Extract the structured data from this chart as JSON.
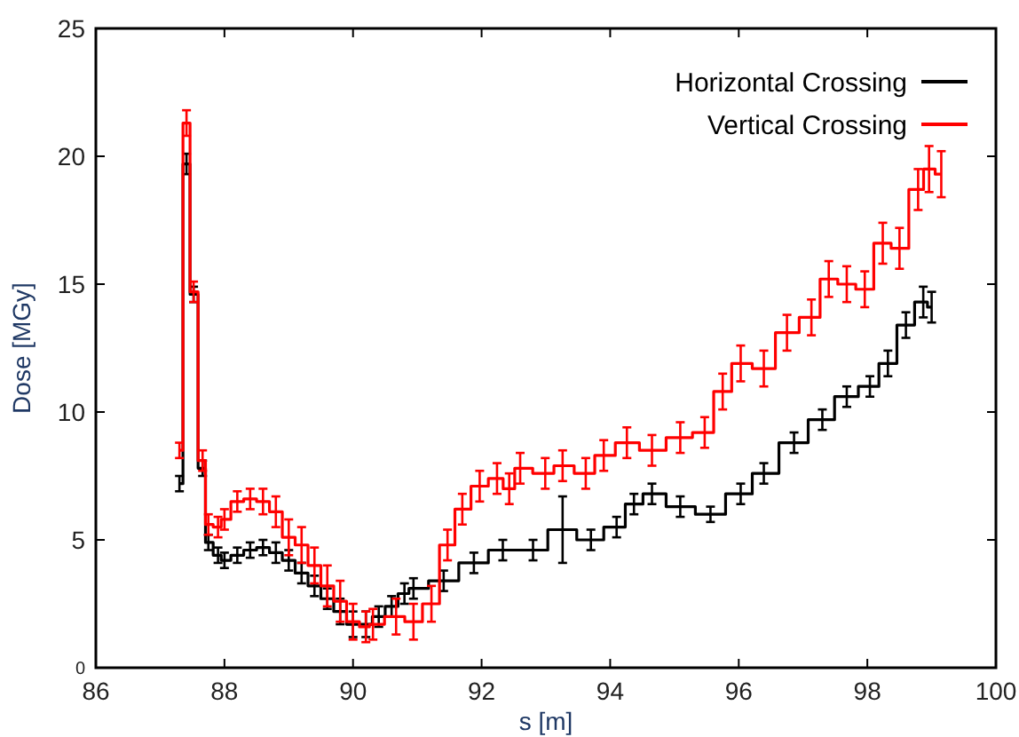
{
  "chart_data": {
    "type": "step",
    "xlabel": "s [m]",
    "ylabel": "Dose [MGy]",
    "xlim": [
      86,
      100
    ],
    "xticks": [
      86,
      88,
      90,
      92,
      94,
      96,
      98,
      100
    ],
    "ylim": [
      0,
      25
    ],
    "yticks": [
      0,
      5,
      10,
      15,
      20,
      25
    ],
    "grid": false,
    "legend": "top right",
    "marker": "none",
    "line_style": "solid",
    "series": [
      {
        "name": "Horizontal Crossing",
        "color": "#000000",
        "x": [
          87.3,
          87.41,
          87.52,
          87.66,
          87.75,
          87.9,
          88.0,
          88.2,
          88.4,
          88.6,
          88.8,
          89.0,
          89.2,
          89.4,
          89.6,
          89.8,
          90.0,
          90.2,
          90.4,
          90.6,
          90.8,
          90.94,
          91.41,
          91.88,
          92.33,
          92.8,
          93.26,
          93.7,
          94.1,
          94.37,
          94.65,
          95.09,
          95.56,
          96.03,
          96.39,
          96.86,
          97.3,
          97.68,
          98.04,
          98.32,
          98.6,
          98.87,
          99.0
        ],
        "values": [
          7.2,
          19.7,
          14.6,
          7.8,
          4.9,
          4.4,
          4.2,
          4.4,
          4.6,
          4.7,
          4.5,
          4.2,
          3.7,
          3.2,
          2.7,
          2.2,
          1.7,
          1.7,
          2.0,
          2.4,
          2.9,
          3.1,
          3.4,
          4.1,
          4.6,
          4.6,
          5.4,
          5.0,
          5.5,
          6.4,
          6.8,
          6.3,
          6.0,
          6.8,
          7.6,
          8.8,
          9.7,
          10.6,
          11.0,
          11.9,
          13.4,
          14.3,
          14.1
        ],
        "errors": [
          0.3,
          0.4,
          0.3,
          0.3,
          0.3,
          0.3,
          0.3,
          0.3,
          0.3,
          0.3,
          0.4,
          0.4,
          0.4,
          0.4,
          0.4,
          0.5,
          0.5,
          0.5,
          0.4,
          0.4,
          0.4,
          0.4,
          0.4,
          0.4,
          0.4,
          0.4,
          1.3,
          0.4,
          0.4,
          0.4,
          0.4,
          0.4,
          0.3,
          0.4,
          0.4,
          0.4,
          0.4,
          0.4,
          0.4,
          0.5,
          0.5,
          0.6,
          0.6
        ]
      },
      {
        "name": "Vertical Crossing",
        "color": "#ff0000",
        "x": [
          87.3,
          87.41,
          87.52,
          87.66,
          87.75,
          87.9,
          88.0,
          88.2,
          88.4,
          88.6,
          88.8,
          89.0,
          89.2,
          89.4,
          89.6,
          89.8,
          90.0,
          90.2,
          90.31,
          90.67,
          90.94,
          91.22,
          91.47,
          91.7,
          91.97,
          92.24,
          92.43,
          92.6,
          92.99,
          93.26,
          93.62,
          93.9,
          94.26,
          94.65,
          95.09,
          95.47,
          95.75,
          96.03,
          96.39,
          96.75,
          97.13,
          97.4,
          97.68,
          97.96,
          98.24,
          98.5,
          98.79,
          98.96,
          99.15
        ],
        "values": [
          8.5,
          21.3,
          14.7,
          8.1,
          5.6,
          5.5,
          5.8,
          6.5,
          6.6,
          6.5,
          6.1,
          5.1,
          4.8,
          4.0,
          3.2,
          2.6,
          1.8,
          1.6,
          1.7,
          2.0,
          1.8,
          2.5,
          4.8,
          6.2,
          7.1,
          7.4,
          7.0,
          7.8,
          7.6,
          7.9,
          7.6,
          8.3,
          8.8,
          8.5,
          9.0,
          9.2,
          10.8,
          11.9,
          11.7,
          13.1,
          13.7,
          15.2,
          15.0,
          14.8,
          16.6,
          16.4,
          18.7,
          19.5,
          19.3
        ],
        "errors": [
          0.3,
          0.5,
          0.4,
          0.4,
          0.4,
          0.4,
          0.4,
          0.4,
          0.4,
          0.5,
          0.6,
          0.7,
          0.7,
          0.7,
          0.8,
          0.8,
          0.7,
          0.6,
          0.6,
          0.7,
          0.7,
          0.7,
          0.6,
          0.6,
          0.6,
          0.6,
          0.6,
          0.6,
          0.6,
          0.6,
          0.6,
          0.6,
          0.6,
          0.6,
          0.6,
          0.6,
          0.7,
          0.7,
          0.7,
          0.7,
          0.7,
          0.7,
          0.7,
          0.7,
          0.8,
          0.8,
          0.8,
          0.9,
          0.9
        ]
      }
    ]
  }
}
